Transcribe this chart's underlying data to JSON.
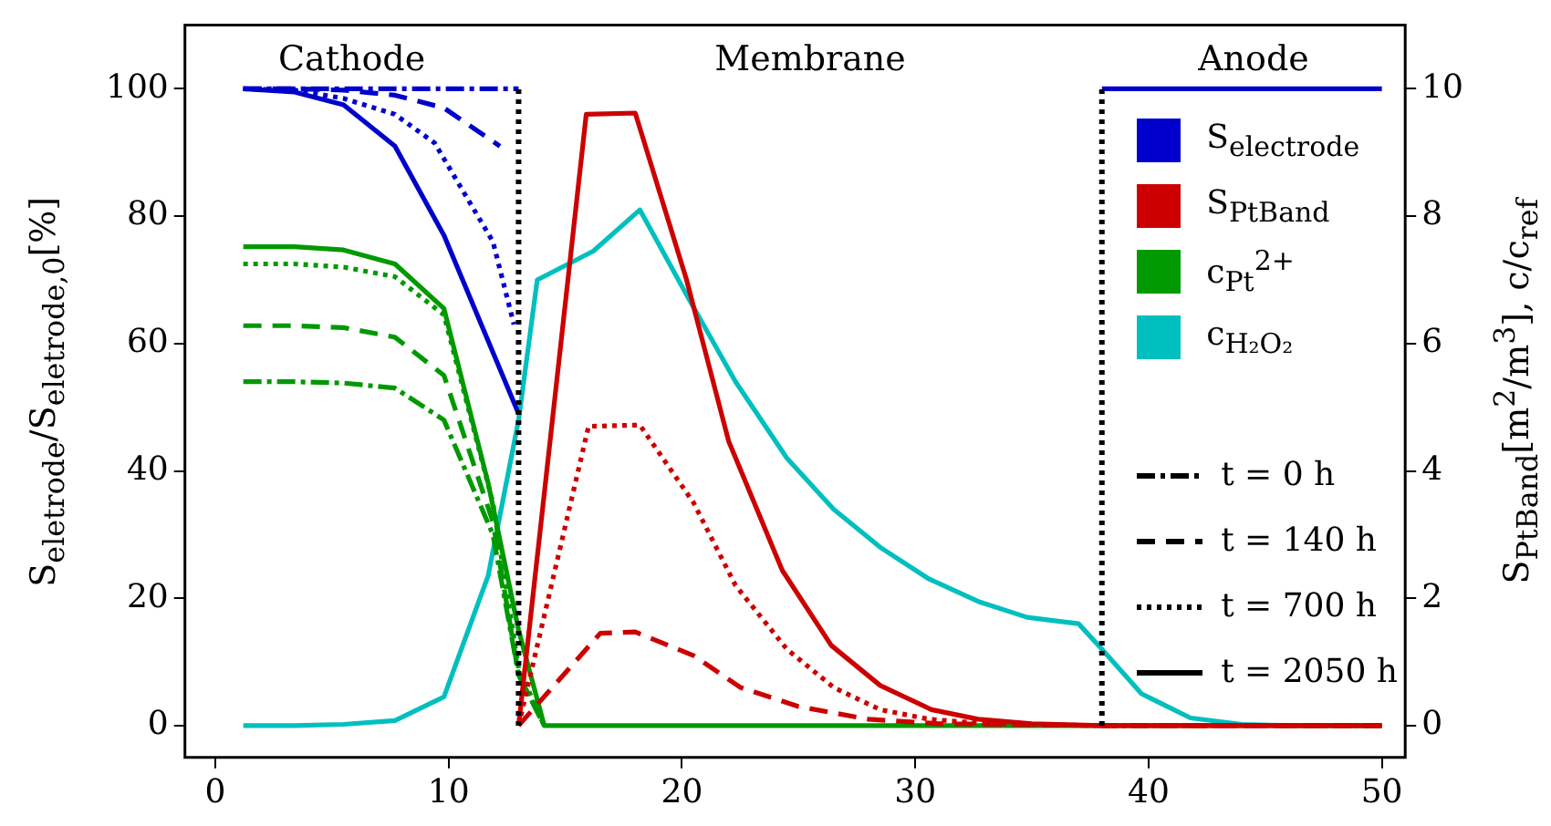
{
  "chart_data": {
    "type": "line",
    "xlim": [
      -1.3,
      51
    ],
    "xticks": [
      0,
      10,
      20,
      30,
      40,
      50
    ],
    "ylim": [
      -5,
      110
    ],
    "yticks": [
      0,
      20,
      40,
      60,
      80,
      100
    ],
    "y2lim": [
      -0.5,
      11
    ],
    "y2ticks": [
      0,
      2,
      4,
      6,
      8,
      10
    ],
    "ylabel": "S$_{eletrode}$/S$_{eletrode,0}$[%]",
    "y2label": "S$_{PtBand}$[m$^{2}$/m$^{3}$],  c/c$_{ref}$",
    "grid": false,
    "legend": "top right",
    "marker": "none",
    "annotations": [
      "Cathode",
      "Membrane",
      "Anode",
      "t = 0 h",
      "t = 140 h",
      "t = 700 h",
      "t = 2050 h"
    ],
    "ref_lines": [
      {
        "axis": "x",
        "value": 13,
        "color": "#000000",
        "line_style": "dotted"
      },
      {
        "axis": "x",
        "value": 38,
        "color": "#000000",
        "line_style": "dotted"
      }
    ],
    "series": [
      {
        "color": "#0000cc",
        "line_style": "dashdot",
        "x": [
          1.2,
          13
        ],
        "values": [
          100,
          100
        ]
      },
      {
        "color": "#0000cc",
        "line_style": "dashed",
        "x": [
          1.2,
          3.4,
          5.5,
          7.7,
          9.8,
          12.2
        ],
        "values": [
          100,
          100,
          99.8,
          99,
          97,
          91
        ]
      },
      {
        "color": "#0000cc",
        "line_style": "dotted",
        "x": [
          1.2,
          3.4,
          5.5,
          7.7,
          9.4,
          11.9,
          12.8
        ],
        "values": [
          100,
          99.8,
          98.5,
          96,
          91.5,
          76,
          63
        ]
      },
      {
        "name": "S$_{electrode}$",
        "color": "#0000cc",
        "line_style": "solid",
        "x": [
          1.2,
          3.4,
          5.5,
          7.7,
          9.8,
          13,
          null,
          38,
          50
        ],
        "values": [
          100,
          99.5,
          97.5,
          91,
          77,
          49,
          null,
          100,
          100
        ]
      },
      {
        "color": "#cc0000",
        "line_style": "dashed",
        "axis": "y2",
        "x": [
          13,
          16.5,
          18,
          20.5,
          22.5,
          25,
          28,
          31,
          38,
          50
        ],
        "values": [
          0,
          1.45,
          1.47,
          1.1,
          0.6,
          0.3,
          0.1,
          0.03,
          0,
          0
        ]
      },
      {
        "color": "#cc0000",
        "line_style": "dotted",
        "axis": "y2",
        "x": [
          13,
          16,
          18.2,
          20.5,
          22.3,
          24.5,
          26.5,
          28.5,
          30.6,
          33,
          38,
          50
        ],
        "values": [
          0,
          4.7,
          4.72,
          3.5,
          2.2,
          1.2,
          0.6,
          0.25,
          0.1,
          0.03,
          0,
          0
        ]
      },
      {
        "name": "S$_{PtBand}$",
        "color": "#cc0000",
        "line_style": "solid",
        "axis": "y2",
        "x": [
          13,
          15.9,
          18,
          20.2,
          22,
          24.3,
          26.4,
          28.5,
          30.7,
          32.7,
          35,
          38,
          50
        ],
        "values": [
          0,
          9.6,
          9.62,
          7.0,
          4.47,
          2.44,
          1.26,
          0.63,
          0.25,
          0.1,
          0.03,
          0,
          0
        ]
      },
      {
        "color": "#009900",
        "line_style": "dashdot",
        "axis": "y2",
        "x": [
          1.2,
          3.4,
          5.5,
          7.7,
          9.8,
          11.9,
          13,
          14.1
        ],
        "values": [
          5.4,
          5.4,
          5.38,
          5.3,
          4.8,
          3.0,
          0.8,
          0
        ]
      },
      {
        "color": "#009900",
        "line_style": "dashed",
        "axis": "y2",
        "x": [
          1.2,
          3.4,
          5.5,
          7.7,
          9.8,
          11.9,
          13,
          14.1
        ],
        "values": [
          6.28,
          6.28,
          6.25,
          6.1,
          5.5,
          3.2,
          0.8,
          0
        ]
      },
      {
        "color": "#009900",
        "line_style": "dotted",
        "axis": "y2",
        "x": [
          1.2,
          3.4,
          5.5,
          7.7,
          9.8,
          11.9,
          13,
          14.1
        ],
        "values": [
          7.25,
          7.25,
          7.2,
          7.05,
          6.45,
          3.5,
          0.9,
          0
        ]
      },
      {
        "name": "c$_{Pt}$$^{2+}$",
        "color": "#009900",
        "line_style": "solid",
        "axis": "y2",
        "x": [
          1.2,
          3.4,
          5.5,
          7.7,
          9.8,
          11.7,
          13,
          14.1,
          50
        ],
        "values": [
          7.52,
          7.52,
          7.47,
          7.25,
          6.55,
          3.8,
          1.5,
          0,
          0
        ]
      },
      {
        "name": "c$_{H₂O₂}$",
        "color": "#00bfbf",
        "line_style": "solid",
        "axis": "y2",
        "x": [
          1.2,
          3.4,
          5.5,
          7.7,
          9.8,
          11.7,
          13,
          13.8,
          16.2,
          18.2,
          20.3,
          22.3,
          24.5,
          26.5,
          28.5,
          30.6,
          32.7,
          34.8,
          37,
          38,
          39.7,
          41.8,
          44,
          46,
          50
        ],
        "values": [
          0,
          0,
          0.02,
          0.08,
          0.45,
          2.36,
          4.8,
          7.0,
          7.45,
          8.1,
          6.7,
          5.4,
          4.2,
          3.4,
          2.8,
          2.3,
          1.95,
          1.7,
          1.6,
          1.2,
          0.5,
          0.12,
          0.02,
          0,
          0
        ]
      }
    ]
  }
}
